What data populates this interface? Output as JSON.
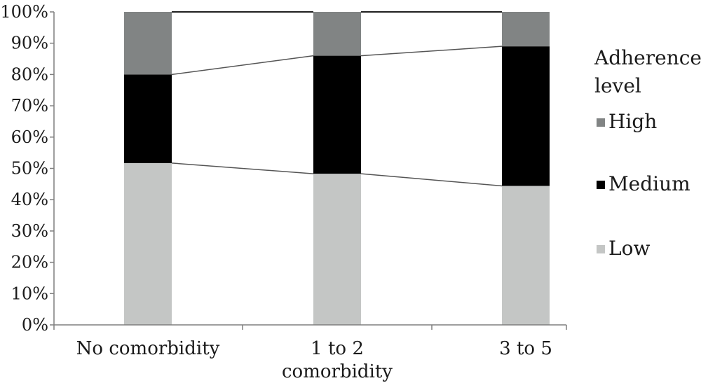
{
  "chart_data": {
    "type": "bar",
    "stacked": true,
    "percent_stacked": true,
    "categories": [
      [
        "No comorbidity"
      ],
      [
        "1 to 2",
        "comorbidity"
      ],
      [
        "3 to 5"
      ]
    ],
    "series": [
      {
        "name": "Low",
        "values": [
          51.7,
          48.3,
          44.4
        ],
        "color": "#c4c6c5"
      },
      {
        "name": "Medium",
        "values": [
          28.3,
          37.7,
          44.6
        ],
        "color": "#000000"
      },
      {
        "name": "High",
        "values": [
          20.0,
          14.0,
          11.0
        ],
        "color": "#818484"
      }
    ],
    "ylim": [
      0,
      100
    ],
    "yticks": [
      0,
      10,
      20,
      30,
      40,
      50,
      60,
      70,
      80,
      90,
      100
    ],
    "ytick_suffix": "%",
    "grid": false,
    "series_lines": true,
    "legend": {
      "title_lines": [
        "Adherence",
        "level"
      ],
      "placement": "right",
      "order": [
        "High",
        "Medium",
        "Low"
      ]
    }
  }
}
